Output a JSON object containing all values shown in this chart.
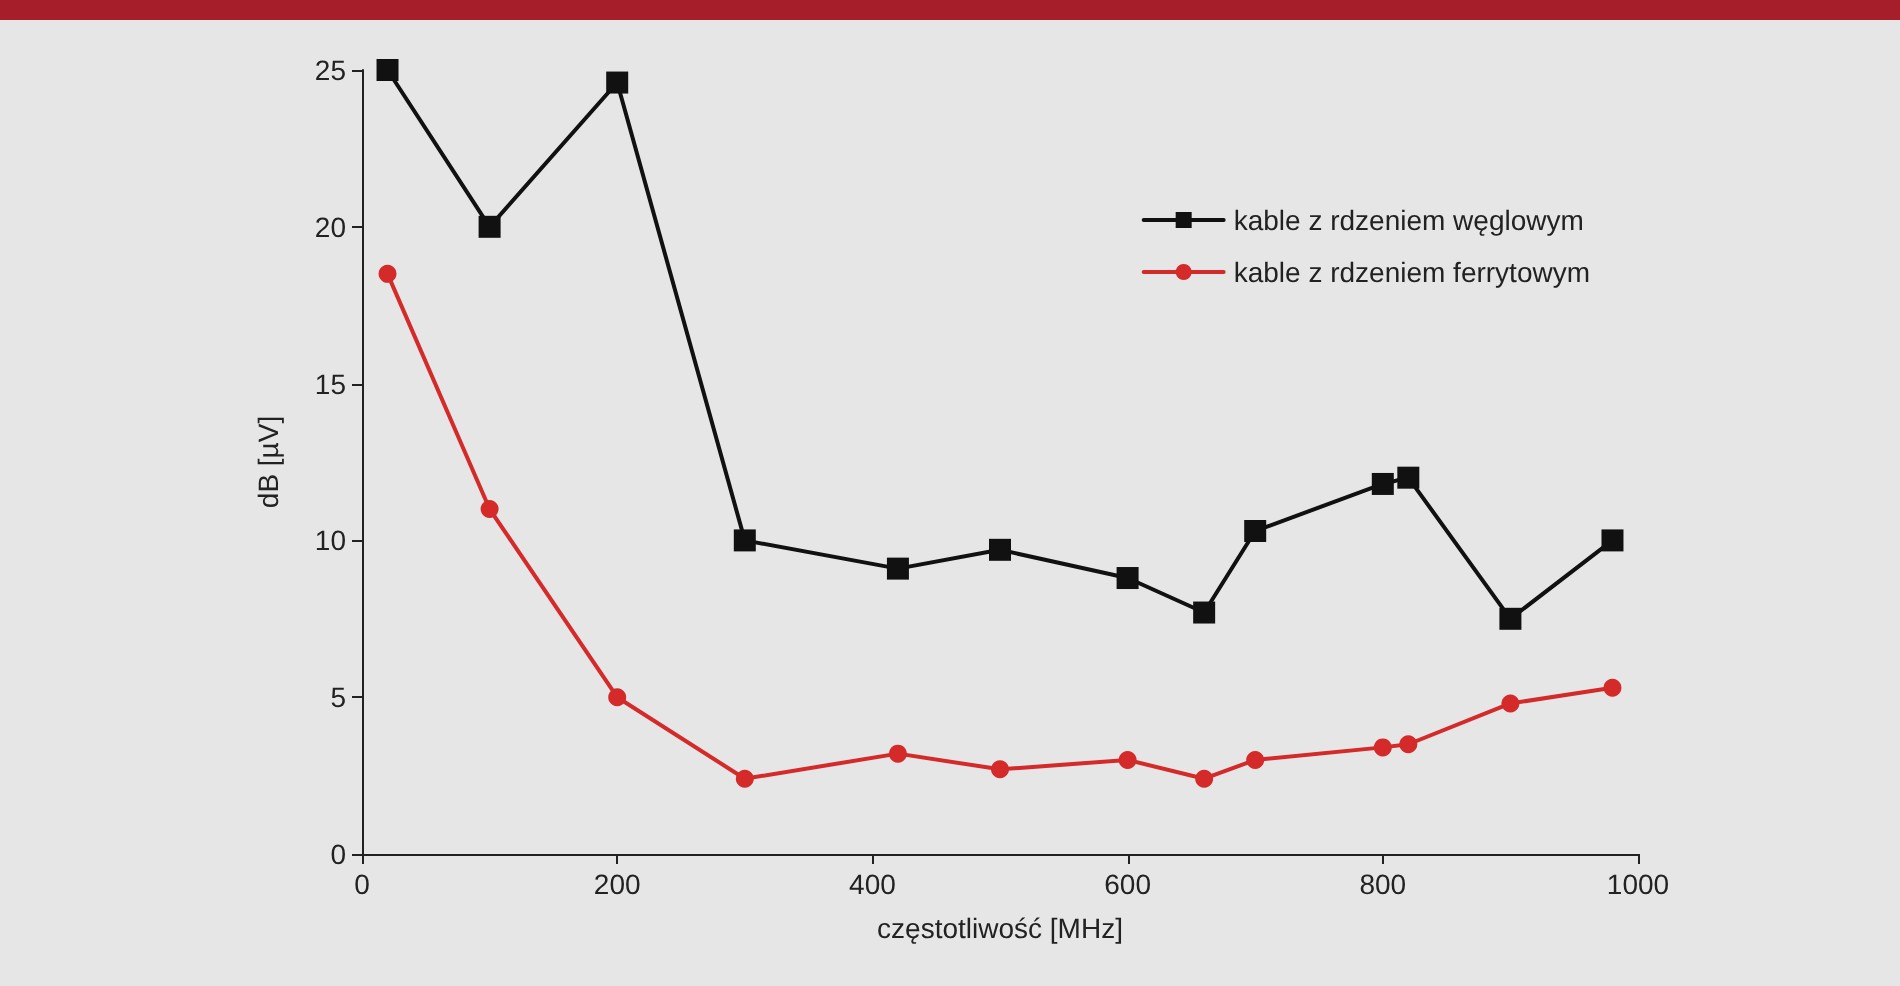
{
  "chart_data": {
    "type": "line",
    "xlabel": "częstotliwość [MHz]",
    "ylabel": "dB [µV]",
    "x": [
      20,
      100,
      200,
      300,
      420,
      500,
      600,
      660,
      700,
      800,
      820,
      900,
      980
    ],
    "series": [
      {
        "name": "kable z rdzeniem węglowym",
        "color": "#111111",
        "marker": "square",
        "values": [
          25,
          20,
          24.6,
          10,
          9.1,
          9.7,
          8.8,
          7.7,
          10.3,
          11.8,
          12,
          7.5,
          10
        ]
      },
      {
        "name": "kable z rdzeniem ferrytowym",
        "color": "#d42a2a",
        "marker": "circle",
        "values": [
          18.5,
          11,
          5,
          2.4,
          3.2,
          2.7,
          3,
          2.4,
          3,
          3.4,
          3.5,
          4.8,
          5.3
        ]
      }
    ],
    "xlim": [
      0,
      1000
    ],
    "xticks": [
      0,
      200,
      400,
      600,
      800,
      1000
    ],
    "ylim": [
      0,
      25
    ],
    "yticks": [
      0,
      5,
      10,
      15,
      20,
      25
    ],
    "grid": false,
    "legend": "top right",
    "line_style": "solid"
  }
}
